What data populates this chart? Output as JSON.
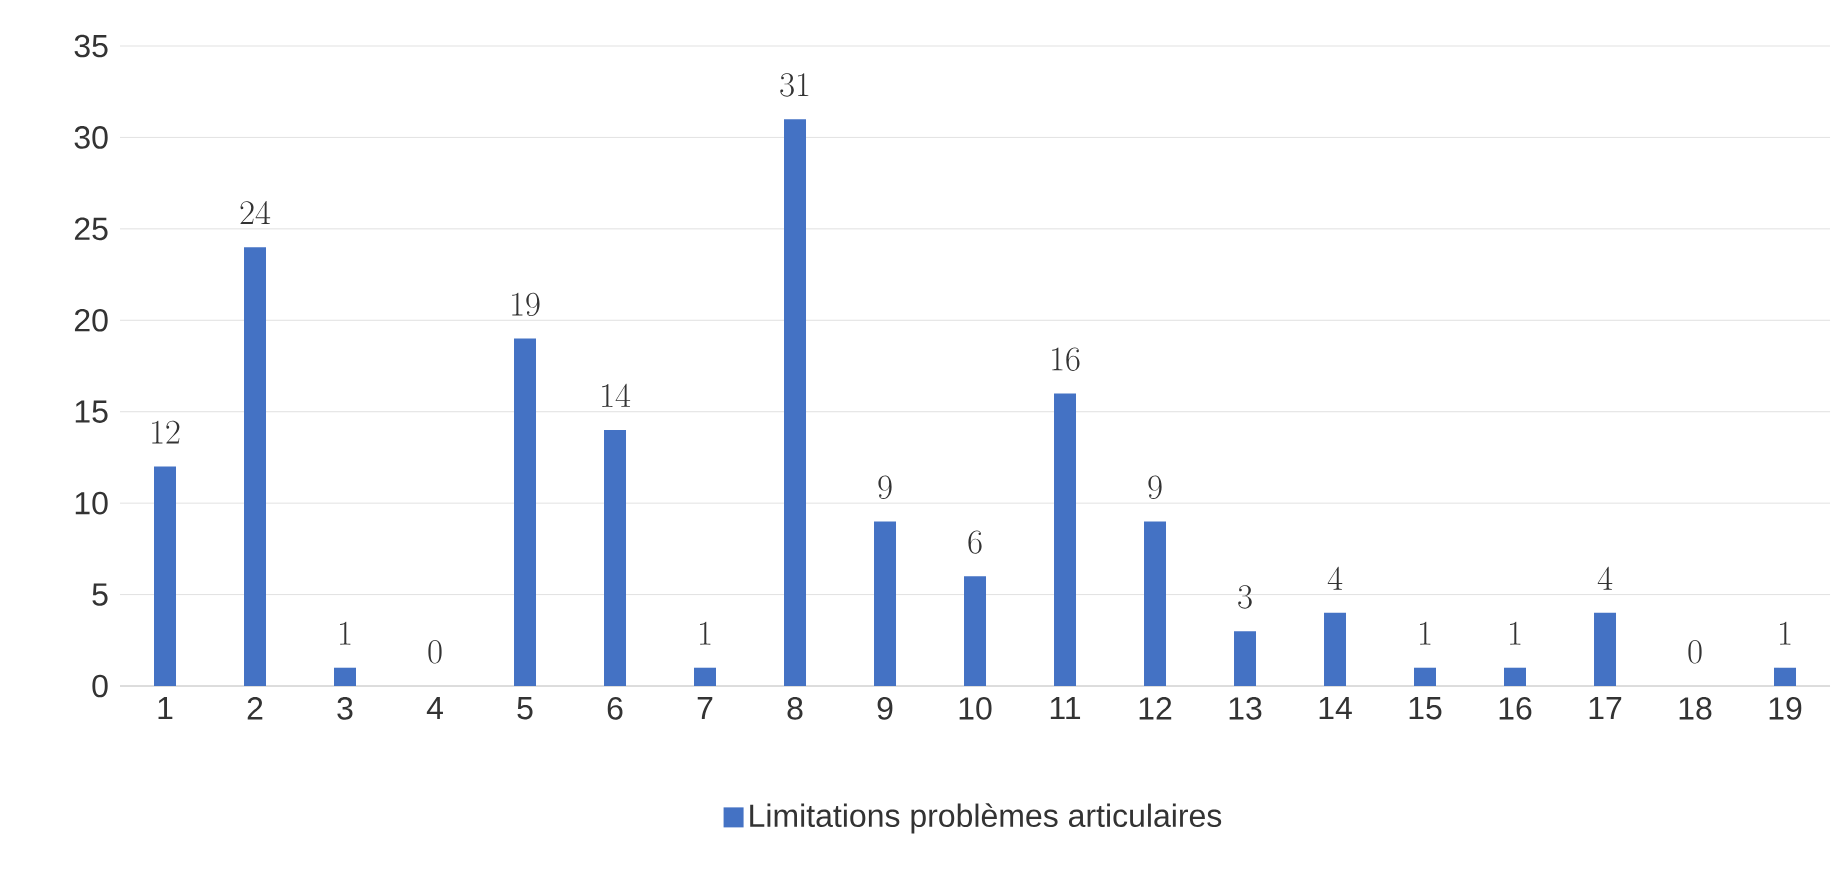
{
  "chart_data": {
    "type": "bar",
    "categories": [
      "1",
      "2",
      "3",
      "4",
      "5",
      "6",
      "7",
      "8",
      "9",
      "10",
      "11",
      "12",
      "13",
      "14",
      "15",
      "16",
      "17",
      "18",
      "19"
    ],
    "series": [
      {
        "name": "Limitations problèmes articulaires",
        "color": "#4472c4",
        "values": [
          12,
          24,
          1,
          0,
          19,
          14,
          1,
          31,
          9,
          6,
          16,
          9,
          3,
          4,
          1,
          1,
          4,
          0,
          1
        ]
      }
    ],
    "ylim": [
      0,
      35
    ],
    "yticks": [
      0,
      5,
      10,
      15,
      20,
      25,
      30,
      35
    ],
    "grid": "y",
    "legend": "bottom",
    "data_labels": true
  }
}
